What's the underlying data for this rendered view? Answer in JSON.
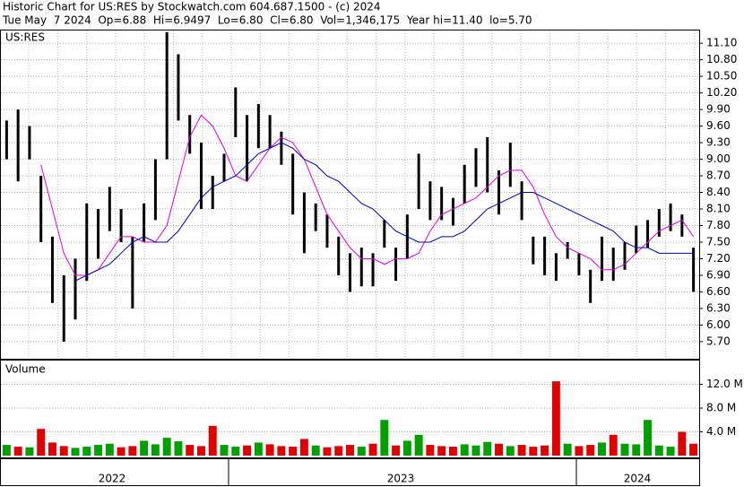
{
  "header": {
    "title": "Historic Chart for US:RES by Stockwatch.com 604.687.1500 - (c) 2024",
    "quote": "Tue May  7 2024  Op=6.88  Hi=6.9497  Lo=6.80  Cl=6.80  Vol=1,346,175  Year hi=11.40  lo=5.70"
  },
  "x_labels": [
    "2022",
    "2023",
    "2024"
  ],
  "chart_data": [
    {
      "type": "hilo",
      "label": "US:RES",
      "bar_color": "#000000",
      "high": [
        9.7,
        9.9,
        9.6,
        8.7,
        7.6,
        6.9,
        7.2,
        8.2,
        8.1,
        8.5,
        8.1,
        7.6,
        8.2,
        9.0,
        11.3,
        10.9,
        9.8,
        9.3,
        8.7,
        9.1,
        10.3,
        9.8,
        10.0,
        9.8,
        9.5,
        9.1,
        8.4,
        8.2,
        8.0,
        7.6,
        7.3,
        7.4,
        7.3,
        7.9,
        7.4,
        8.0,
        9.1,
        8.6,
        8.5,
        8.3,
        8.9,
        9.2,
        9.4,
        8.8,
        9.3,
        8.6,
        7.6,
        7.6,
        7.3,
        7.5,
        7.3,
        7.0,
        7.6,
        7.4,
        7.5,
        7.8,
        7.9,
        8.1,
        8.2,
        8.0,
        7.4
      ],
      "low": [
        9.0,
        8.6,
        9.0,
        7.5,
        6.4,
        5.7,
        6.1,
        6.8,
        7.2,
        7.7,
        7.5,
        6.3,
        7.5,
        7.9,
        9.0,
        9.7,
        9.1,
        8.1,
        8.1,
        8.6,
        9.4,
        8.6,
        9.2,
        9.2,
        8.9,
        8.0,
        7.3,
        7.7,
        7.4,
        6.9,
        6.6,
        6.7,
        6.7,
        7.4,
        6.8,
        7.2,
        8.1,
        7.9,
        7.9,
        7.8,
        8.2,
        8.5,
        8.4,
        8.0,
        8.5,
        7.9,
        7.1,
        6.9,
        6.8,
        7.2,
        6.9,
        6.4,
        6.8,
        6.8,
        7.0,
        7.3,
        7.4,
        7.6,
        7.7,
        7.6,
        6.6
      ],
      "lines": [
        {
          "color": "#e000e0",
          "values": [
            null,
            null,
            null,
            8.9,
            8.1,
            7.3,
            6.9,
            6.9,
            7.0,
            7.3,
            7.6,
            7.6,
            7.5,
            7.5,
            7.8,
            8.6,
            9.4,
            9.8,
            9.6,
            9.2,
            8.7,
            8.6,
            8.9,
            9.2,
            9.4,
            9.3,
            9.0,
            8.5,
            8.0,
            7.7,
            7.4,
            7.2,
            7.2,
            7.1,
            7.2,
            7.2,
            7.3,
            7.7,
            8.0,
            8.1,
            8.2,
            8.3,
            8.5,
            8.7,
            8.8,
            8.8,
            8.5,
            8.0,
            7.6,
            7.4,
            7.3,
            7.2,
            7.0,
            7.0,
            7.1,
            7.3,
            7.5,
            7.7,
            7.8,
            7.9,
            7.6
          ]
        },
        {
          "color": "#0000c0",
          "values": [
            null,
            null,
            null,
            null,
            null,
            null,
            6.8,
            6.9,
            7.0,
            7.1,
            7.3,
            7.5,
            7.6,
            7.5,
            7.5,
            7.7,
            8.0,
            8.3,
            8.5,
            8.6,
            8.7,
            8.9,
            9.1,
            9.2,
            9.3,
            9.2,
            9.0,
            8.9,
            8.7,
            8.6,
            8.4,
            8.2,
            8.1,
            7.9,
            7.7,
            7.6,
            7.5,
            7.5,
            7.6,
            7.6,
            7.7,
            7.9,
            8.1,
            8.2,
            8.3,
            8.4,
            8.4,
            8.3,
            8.2,
            8.1,
            8.0,
            7.9,
            7.8,
            7.7,
            7.5,
            7.4,
            7.4,
            7.3,
            7.3,
            7.3,
            7.3
          ]
        }
      ],
      "ylim": [
        5.39,
        11.33
      ],
      "yticks": [
        {
          "value": 5.7,
          "label": "5.70"
        },
        {
          "value": 6.0,
          "label": "6.00"
        },
        {
          "value": 6.3,
          "label": "6.30"
        },
        {
          "value": 6.6,
          "label": "6.60"
        },
        {
          "value": 6.9,
          "label": "6.90"
        },
        {
          "value": 7.2,
          "label": "7.20"
        },
        {
          "value": 7.5,
          "label": "7.50"
        },
        {
          "value": 7.8,
          "label": "7.80"
        },
        {
          "value": 8.1,
          "label": "8.10"
        },
        {
          "value": 8.4,
          "label": "8.40"
        },
        {
          "value": 8.7,
          "label": "8.70"
        },
        {
          "value": 9.0,
          "label": "9.00"
        },
        {
          "value": 9.3,
          "label": "9.30"
        },
        {
          "value": 9.6,
          "label": "9.60"
        },
        {
          "value": 9.9,
          "label": "9.90"
        },
        {
          "value": 10.2,
          "label": "10.20"
        },
        {
          "value": 10.5,
          "label": "10.50"
        },
        {
          "value": 10.8,
          "label": "10.80"
        },
        {
          "value": 11.1,
          "label": "11.10"
        }
      ],
      "grid": true
    },
    {
      "type": "bar",
      "label": "Volume",
      "up_color": "#00a000",
      "down_color": "#e00000",
      "values": [
        1.8,
        1.5,
        1.4,
        4.5,
        2.2,
        1.6,
        1.3,
        1.5,
        1.8,
        2.0,
        1.4,
        1.6,
        2.5,
        1.9,
        3.0,
        2.4,
        1.8,
        1.6,
        5.0,
        1.8,
        1.5,
        1.7,
        2.2,
        1.9,
        1.6,
        1.5,
        2.8,
        1.7,
        1.4,
        1.6,
        1.8,
        1.5,
        2.0,
        6.0,
        1.7,
        2.5,
        3.5,
        1.8,
        1.6,
        1.5,
        1.9,
        1.7,
        2.3,
        2.0,
        1.6,
        1.8,
        1.5,
        1.7,
        12.5,
        2.0,
        1.6,
        1.8,
        2.2,
        3.5,
        2.0,
        1.9,
        6.0,
        1.7,
        1.5,
        4.0,
        2.0
      ],
      "ylim": [
        0,
        16
      ],
      "yticks": [
        {
          "value": 4,
          "label": "4.0 M"
        },
        {
          "value": 8,
          "label": "8.0 M"
        },
        {
          "value": 12,
          "label": "12.0 M"
        }
      ],
      "grid": true
    }
  ]
}
